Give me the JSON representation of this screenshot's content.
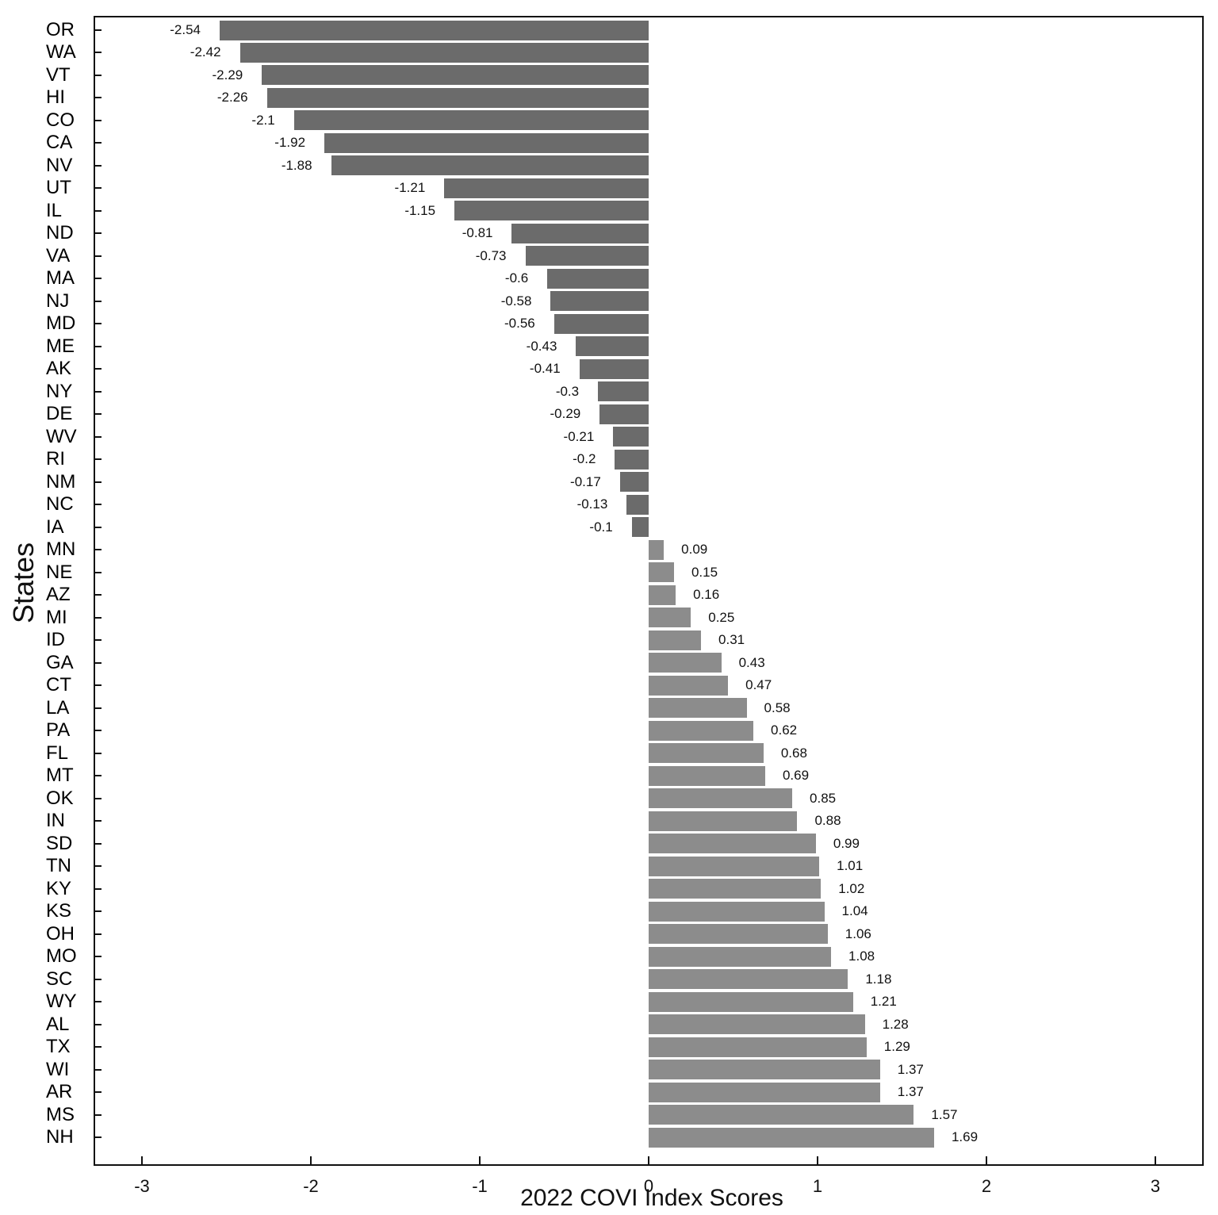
{
  "chart_data": {
    "type": "bar",
    "orientation": "horizontal",
    "title": "",
    "xlabel": "2022 COVI Index Scores",
    "ylabel": "States",
    "xlim": [
      -3.3,
      3.3
    ],
    "xticks": [
      -3,
      -2,
      -1,
      0,
      1,
      2,
      3
    ],
    "grid": false,
    "legend": null,
    "categories": [
      "OR",
      "WA",
      "VT",
      "HI",
      "CO",
      "CA",
      "NV",
      "UT",
      "IL",
      "ND",
      "VA",
      "MA",
      "NJ",
      "MD",
      "ME",
      "AK",
      "NY",
      "DE",
      "WV",
      "RI",
      "NM",
      "NC",
      "IA",
      "MN",
      "NE",
      "AZ",
      "MI",
      "ID",
      "GA",
      "CT",
      "LA",
      "PA",
      "FL",
      "MT",
      "OK",
      "IN",
      "SD",
      "TN",
      "KY",
      "KS",
      "OH",
      "MO",
      "SC",
      "WY",
      "AL",
      "TX",
      "WI",
      "AR",
      "MS",
      "NH"
    ],
    "values": [
      -2.54,
      -2.42,
      -2.29,
      -2.26,
      -2.1,
      -1.92,
      -1.88,
      -1.21,
      -1.15,
      -0.81,
      -0.73,
      -0.6,
      -0.58,
      -0.56,
      -0.43,
      -0.41,
      -0.3,
      -0.29,
      -0.21,
      -0.2,
      -0.17,
      -0.13,
      -0.1,
      0.09,
      0.15,
      0.16,
      0.25,
      0.31,
      0.43,
      0.47,
      0.58,
      0.62,
      0.68,
      0.69,
      0.85,
      0.88,
      0.99,
      1.01,
      1.02,
      1.04,
      1.06,
      1.08,
      1.18,
      1.21,
      1.28,
      1.29,
      1.37,
      1.37,
      1.57,
      1.69
    ],
    "colors": {
      "negative": "#6b6b6b",
      "positive": "#8c8c8c"
    }
  }
}
